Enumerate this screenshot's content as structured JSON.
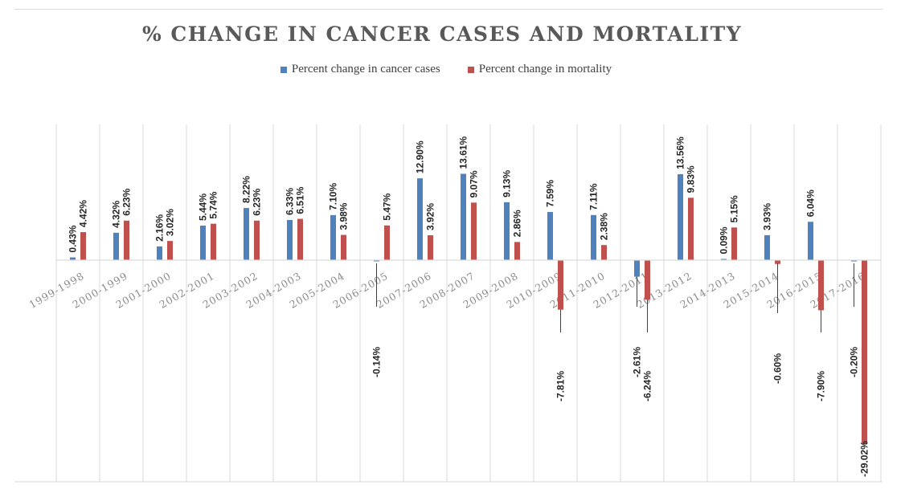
{
  "chart_data": {
    "type": "bar",
    "title": "% CHANGE IN CANCER CASES AND MORTALITY",
    "xlabel": "",
    "ylabel": "",
    "ylim": [
      -35,
      30
    ],
    "grid": "vertical",
    "legend_position": "top",
    "categories": [
      "1999-1998",
      "2000-1999",
      "2001-2000",
      "2002-2001",
      "2003-2002",
      "2004-2003",
      "2005-2004",
      "2006-2005",
      "2007-2006",
      "2008-2007",
      "2009-2008",
      "2010-2009",
      "2011-2010",
      "2012-2011",
      "2013-2012",
      "2014-2013",
      "2015-2014",
      "2016-2015",
      "2017-2016"
    ],
    "series": [
      {
        "name": "Percent change in cancer cases",
        "color": "#4f81bd",
        "values": [
          0.43,
          4.32,
          2.16,
          5.44,
          8.22,
          6.33,
          7.1,
          -0.14,
          12.9,
          13.61,
          9.13,
          7.59,
          7.11,
          -2.61,
          13.56,
          0.09,
          3.93,
          6.04,
          -0.2
        ],
        "labels": [
          "0.43%",
          "4.32%",
          "2.16%",
          "5.44%",
          "8.22%",
          "6.33%",
          "7.10%",
          "-0.14%",
          "12.90%",
          "13.61%",
          "9.13%",
          "7.59%",
          "7.11%",
          "-2.61%",
          "13.56%",
          "0.09%",
          "3.93%",
          "6.04%",
          "-0.20%"
        ]
      },
      {
        "name": "Percent change in mortality",
        "color": "#c0504d",
        "values": [
          4.42,
          6.23,
          3.02,
          5.74,
          6.23,
          6.51,
          3.98,
          5.47,
          3.92,
          9.07,
          2.86,
          -7.81,
          2.38,
          -6.24,
          9.83,
          5.15,
          -0.6,
          -7.9,
          -29.02
        ],
        "labels": [
          "4.42%",
          "6.23%",
          "3.02%",
          "5.74%",
          "6.23%",
          "6.51%",
          "3.98%",
          "5.47%",
          "3.92%",
          "9.07%",
          "2.86%",
          "-7.81%",
          "2.38%",
          "-6.24%",
          "9.83%",
          "5.15%",
          "-0.60%",
          "-7.90%",
          "-29.02%"
        ]
      }
    ]
  }
}
